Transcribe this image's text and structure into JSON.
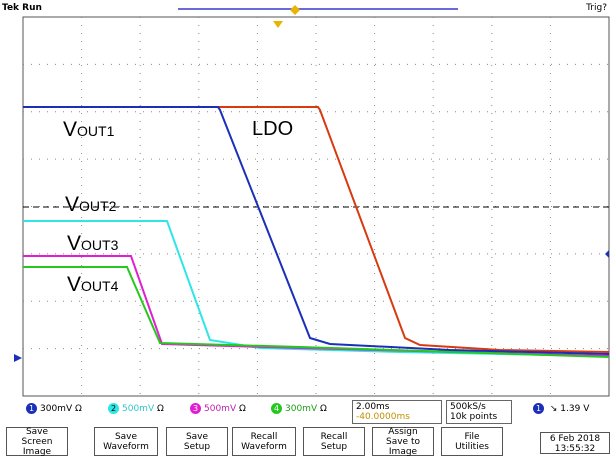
{
  "header": {
    "run_status": "Tek Run",
    "trigger_status": "Trig?"
  },
  "labels": {
    "vout1": {
      "main": "V",
      "sub": "OUT1"
    },
    "vout2": {
      "main": "V",
      "sub": "OUT2"
    },
    "vout3": {
      "main": "V",
      "sub": "OUT3"
    },
    "vout4": {
      "main": "V",
      "sub": "OUT4"
    },
    "ldo": "LDO"
  },
  "colors": {
    "ch1": "#1b2fb8",
    "ch2": "#2ee6e6",
    "ch3": "#e020d0",
    "ch4": "#25c81e",
    "ref": "#d83a10",
    "grid": "#8a8a8a"
  },
  "channels": [
    {
      "number": "1",
      "scale": "300mV",
      "coupling": "Ω"
    },
    {
      "number": "2",
      "scale": "500mV",
      "coupling": "Ω"
    },
    {
      "number": "3",
      "scale": "500mV",
      "coupling": "Ω"
    },
    {
      "number": "4",
      "scale": "300mV",
      "coupling": "Ω"
    }
  ],
  "timebase": {
    "scale": "2.00ms",
    "position": "-40.0000ms"
  },
  "acquisition": {
    "rate": "500kS/s",
    "points": "10k points"
  },
  "trigger": {
    "channel": "1",
    "slope": "↘",
    "level": "1.39 V"
  },
  "menu": [
    {
      "line1": "Save",
      "line2": "Screen Image"
    },
    {
      "line1": "Save",
      "line2": "Waveform"
    },
    {
      "line1": "Save",
      "line2": "Setup"
    },
    {
      "line1": "Recall",
      "line2": "Waveform"
    },
    {
      "line1": "Recall",
      "line2": "Setup"
    },
    {
      "line1": "Assign",
      "line2": "Save to Image"
    },
    {
      "line1": "File",
      "line2": "Utilities"
    }
  ],
  "datetime": {
    "date": "6 Feb 2018",
    "time": "13:55:32"
  }
}
